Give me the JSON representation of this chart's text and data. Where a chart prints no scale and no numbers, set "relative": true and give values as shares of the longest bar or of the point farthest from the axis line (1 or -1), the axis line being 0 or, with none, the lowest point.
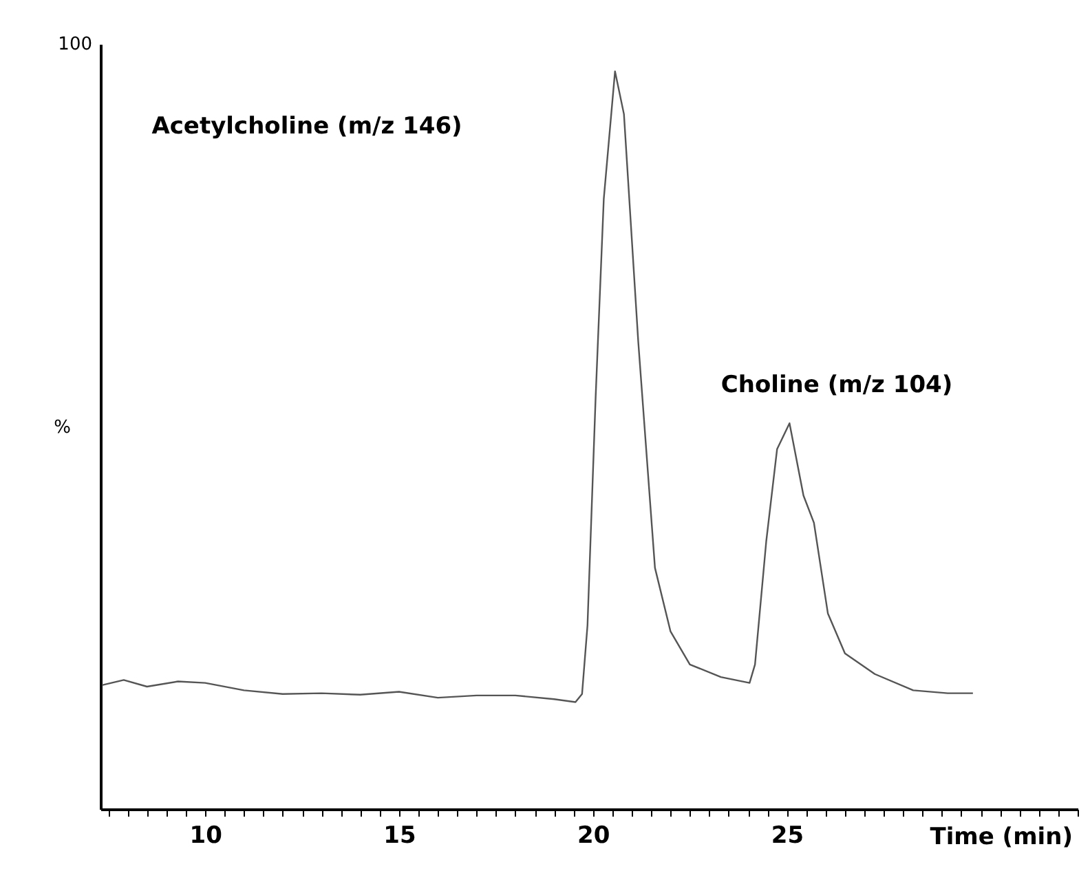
{
  "chart_data": {
    "type": "line",
    "relative": true,
    "x": [
      7.34,
      7.9,
      8.5,
      9.3,
      10.0,
      11.0,
      12.0,
      13.0,
      14.0,
      15.0,
      16.0,
      17.0,
      18.0,
      19.0,
      19.55,
      19.72,
      19.86,
      20.07,
      20.28,
      20.57,
      20.8,
      21.17,
      21.6,
      22.0,
      22.5,
      23.3,
      24.04,
      24.18,
      24.47,
      24.75,
      25.07,
      25.43,
      25.7,
      26.06,
      26.5,
      27.27,
      28.26,
      29.15,
      29.8
    ],
    "series": [
      {
        "color": "#555555",
        "values": [
          0.168,
          0.175,
          0.166,
          0.173,
          0.171,
          0.161,
          0.156,
          0.157,
          0.155,
          0.159,
          0.151,
          0.154,
          0.154,
          0.149,
          0.145,
          0.156,
          0.249,
          0.558,
          0.827,
          1,
          0.942,
          0.633,
          0.327,
          0.241,
          0.196,
          0.179,
          0.171,
          0.196,
          0.363,
          0.488,
          0.523,
          0.425,
          0.388,
          0.265,
          0.211,
          0.183,
          0.161,
          0.157,
          0.157
        ]
      }
    ],
    "xlabel": "Time (min)",
    "ylabel": "%",
    "xlim": [
      7.3,
      32.5
    ],
    "xticks": [
      {
        "value": 7.5,
        "label": null
      },
      {
        "value": 8,
        "label": null
      },
      {
        "value": 8.5,
        "label": null
      },
      {
        "value": 9,
        "label": null
      },
      {
        "value": 9.5,
        "label": null
      },
      10,
      {
        "value": 10.5,
        "label": null
      },
      {
        "value": 11,
        "label": null
      },
      {
        "value": 11.5,
        "label": null
      },
      {
        "value": 12,
        "label": null
      },
      {
        "value": 12.5,
        "label": null
      },
      {
        "value": 13,
        "label": null
      },
      {
        "value": 13.5,
        "label": null
      },
      {
        "value": 14,
        "label": null
      },
      {
        "value": 14.5,
        "label": null
      },
      15,
      {
        "value": 15.5,
        "label": null
      },
      {
        "value": 16,
        "label": null
      },
      {
        "value": 16.5,
        "label": null
      },
      {
        "value": 17,
        "label": null
      },
      {
        "value": 17.5,
        "label": null
      },
      {
        "value": 18,
        "label": null
      },
      {
        "value": 18.5,
        "label": null
      },
      {
        "value": 19,
        "label": null
      },
      {
        "value": 19.5,
        "label": null
      },
      20,
      {
        "value": 20.5,
        "label": null
      },
      {
        "value": 21,
        "label": null
      },
      {
        "value": 21.5,
        "label": null
      },
      {
        "value": 22,
        "label": null
      },
      {
        "value": 22.5,
        "label": null
      },
      {
        "value": 23,
        "label": null
      },
      {
        "value": 23.5,
        "label": null
      },
      {
        "value": 24,
        "label": null
      },
      {
        "value": 24.5,
        "label": null
      },
      25,
      {
        "value": 25.5,
        "label": null
      },
      {
        "value": 26,
        "label": null
      },
      {
        "value": 26.5,
        "label": null
      },
      {
        "value": 27,
        "label": null
      },
      {
        "value": 27.5,
        "label": null
      },
      {
        "value": 28,
        "label": null
      },
      {
        "value": 28.5,
        "label": null
      },
      {
        "value": 29,
        "label": null
      },
      {
        "value": 29.5,
        "label": null
      },
      {
        "value": 30,
        "label": null
      },
      {
        "value": 30.5,
        "label": null
      },
      {
        "value": 31,
        "label": null
      },
      {
        "value": 31.5,
        "label": null
      },
      {
        "value": 32,
        "label": null
      },
      {
        "value": 32.5,
        "label": null
      }
    ],
    "annotations": [
      "Acetylcholine (m/z 146)",
      "Choline (m/z 104)",
      "100"
    ],
    "grid": false,
    "legend": false,
    "marker": "none",
    "line_style": "solid"
  }
}
